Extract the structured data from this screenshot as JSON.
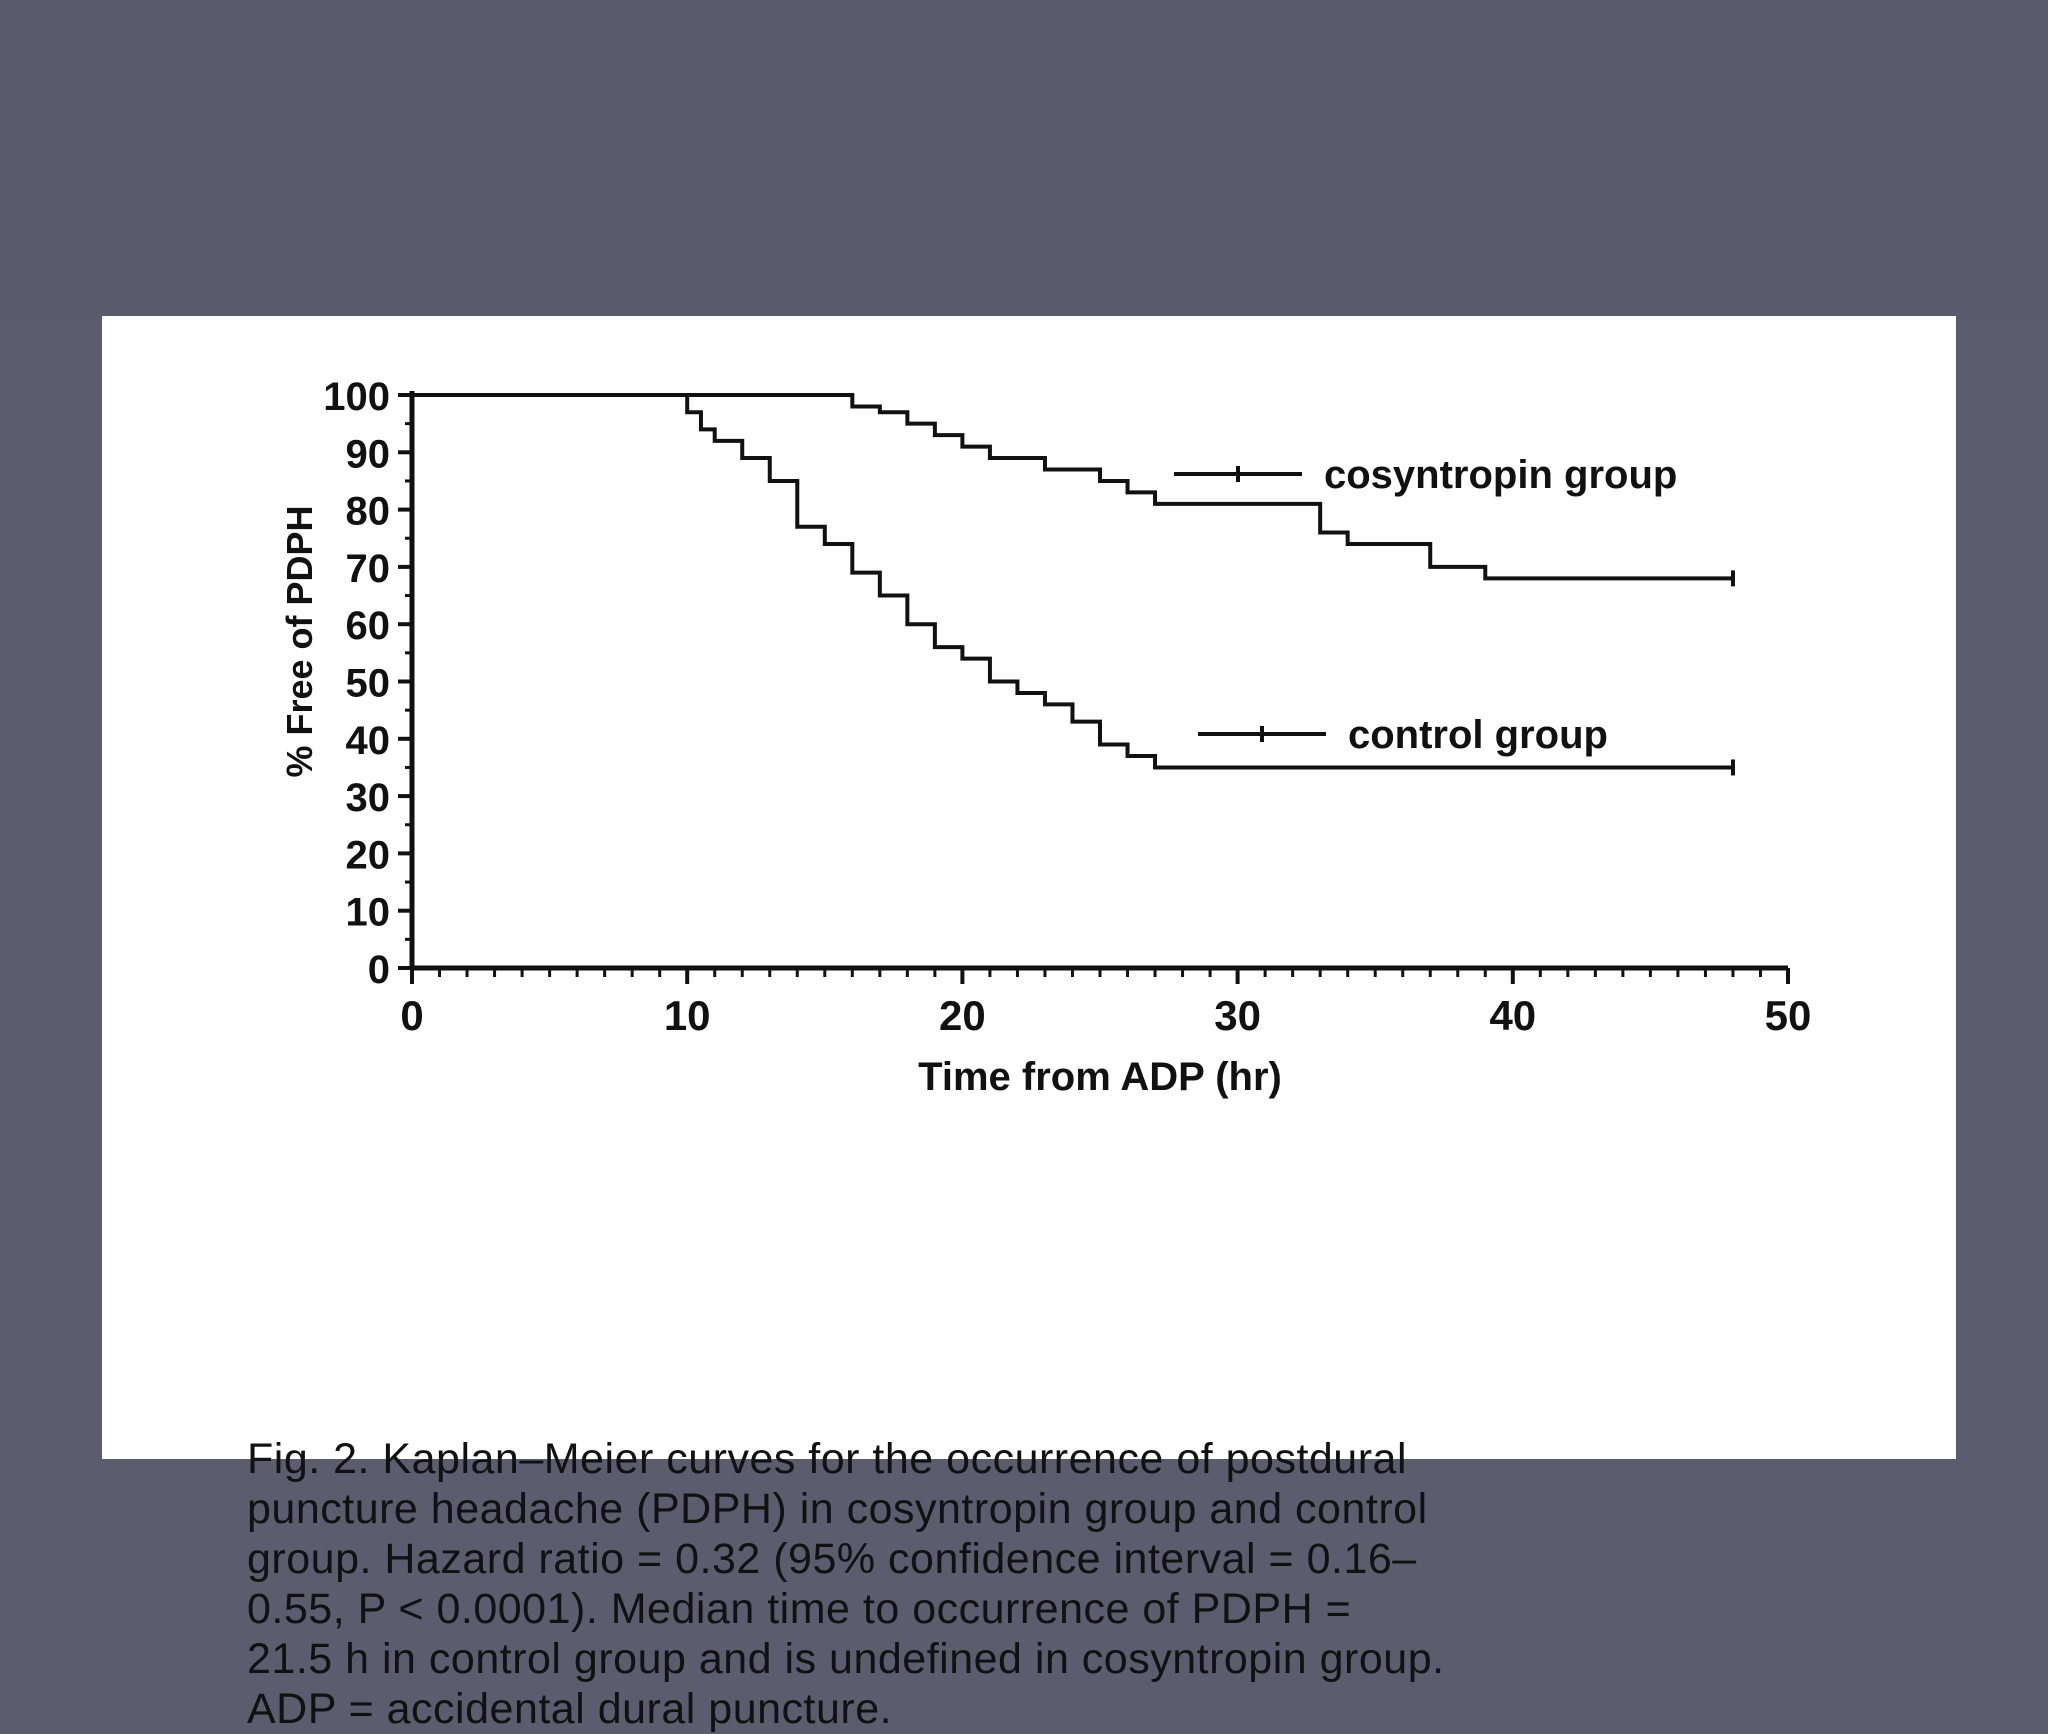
{
  "colors": {
    "slide_background": "#5b5c6d",
    "figure_background": "#ffffff",
    "ink": "#111111"
  },
  "chart_data": {
    "type": "line",
    "step": true,
    "title": "",
    "xlabel": "Time from ADP (hr)",
    "ylabel": "% Free of PDPH",
    "xlim": [
      0,
      50
    ],
    "ylim": [
      0,
      100
    ],
    "xticks": [
      0,
      10,
      20,
      30,
      40,
      50
    ],
    "yticks": [
      0,
      10,
      20,
      30,
      40,
      50,
      60,
      70,
      80,
      90,
      100
    ],
    "grid": false,
    "legend": "inline-right",
    "series": [
      {
        "name": "cosyntropin group",
        "x": [
          0,
          16,
          17,
          18,
          19,
          20,
          21,
          22,
          23,
          24,
          25,
          26,
          27,
          33,
          34,
          37,
          39,
          48
        ],
        "y": [
          100,
          98,
          97,
          95,
          93,
          91,
          89,
          89,
          87,
          87,
          85,
          83,
          81,
          76,
          74,
          70,
          68,
          68
        ]
      },
      {
        "name": "control group",
        "x": [
          0,
          10,
          10.5,
          11,
          12,
          13,
          14,
          15,
          16,
          17,
          18,
          19,
          20,
          21,
          22,
          23,
          24,
          25,
          26,
          27,
          48
        ],
        "y": [
          100,
          97,
          94,
          92,
          89,
          85,
          77,
          74,
          69,
          65,
          60,
          56,
          54,
          50,
          48,
          46,
          43,
          39,
          37,
          35,
          35
        ]
      }
    ]
  },
  "caption": {
    "lines": [
      "Fig. 2. Kaplan–Meier curves for the occurrence of postdural",
      "puncture headache (PDPH) in cosyntropin group and control",
      "group. Hazard ratio = 0.32 (95% confidence interval = 0.16–",
      "0.55, P < 0.0001). Median time to occurrence of PDPH =",
      "21.5 h in control group and is undefined in cosyntropin group.",
      "ADP = accidental dural puncture."
    ]
  }
}
